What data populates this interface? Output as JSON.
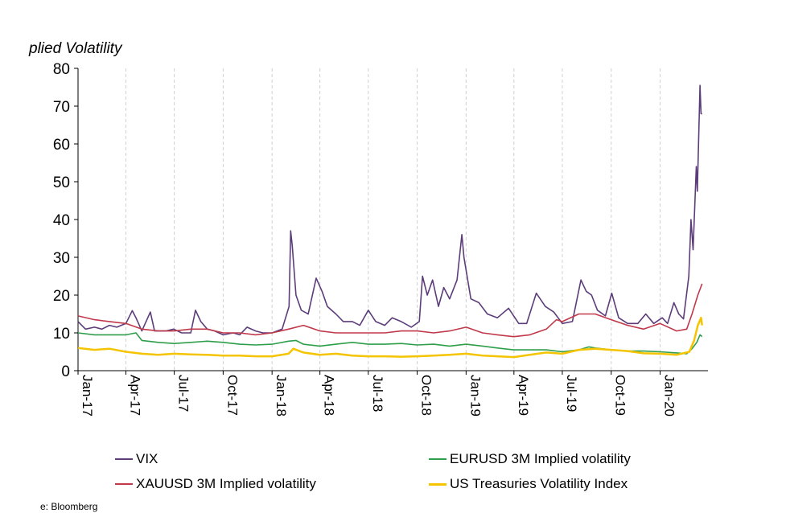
{
  "chart_data": {
    "type": "line",
    "ylabel": "plied Volatility",
    "source": "e: Bloomberg",
    "ylim": [
      0,
      80
    ],
    "yticks": [
      "0",
      "10",
      "20",
      "30",
      "40",
      "50",
      "60",
      "70",
      "80"
    ],
    "xlim": [
      "2017-01-01",
      "2020-03-31"
    ],
    "xticks": [
      {
        "date": "2017-01-01",
        "label": "Jan-17"
      },
      {
        "date": "2017-04-01",
        "label": "Apr-17"
      },
      {
        "date": "2017-07-01",
        "label": "Jul-17"
      },
      {
        "date": "2017-10-01",
        "label": "Oct-17"
      },
      {
        "date": "2018-01-01",
        "label": "Jan-18"
      },
      {
        "date": "2018-04-01",
        "label": "Apr-18"
      },
      {
        "date": "2018-07-01",
        "label": "Jul-18"
      },
      {
        "date": "2018-10-01",
        "label": "Oct-18"
      },
      {
        "date": "2019-01-01",
        "label": "Jan-19"
      },
      {
        "date": "2019-04-01",
        "label": "Apr-19"
      },
      {
        "date": "2019-07-01",
        "label": "Jul-19"
      },
      {
        "date": "2019-10-01",
        "label": "Oct-19"
      },
      {
        "date": "2020-01-01",
        "label": "Jan-20"
      }
    ],
    "grid": "vertical dashed",
    "legend_position": "bottom",
    "series": [
      {
        "name": "VIX",
        "color": "#5c3d7a",
        "points": [
          [
            "2017-01-01",
            13
          ],
          [
            "2017-01-15",
            11
          ],
          [
            "2017-02-01",
            11.5
          ],
          [
            "2017-02-15",
            11
          ],
          [
            "2017-03-01",
            12
          ],
          [
            "2017-03-15",
            11.5
          ],
          [
            "2017-04-01",
            12.5
          ],
          [
            "2017-04-13",
            15.9
          ],
          [
            "2017-04-20",
            14
          ],
          [
            "2017-05-01",
            10.5
          ],
          [
            "2017-05-17",
            15.5
          ],
          [
            "2017-05-25",
            10.5
          ],
          [
            "2017-06-15",
            10.5
          ],
          [
            "2017-06-30",
            11
          ],
          [
            "2017-07-15",
            10
          ],
          [
            "2017-08-01",
            10
          ],
          [
            "2017-08-10",
            16
          ],
          [
            "2017-08-20",
            13
          ],
          [
            "2017-09-01",
            11
          ],
          [
            "2017-09-15",
            10.5
          ],
          [
            "2017-10-01",
            9.5
          ],
          [
            "2017-10-20",
            10
          ],
          [
            "2017-11-01",
            9.5
          ],
          [
            "2017-11-15",
            11.5
          ],
          [
            "2017-12-01",
            10.5
          ],
          [
            "2017-12-15",
            10
          ],
          [
            "2018-01-01",
            10
          ],
          [
            "2018-01-20",
            11
          ],
          [
            "2018-02-02",
            17
          ],
          [
            "2018-02-05",
            37
          ],
          [
            "2018-02-08",
            33
          ],
          [
            "2018-02-15",
            20
          ],
          [
            "2018-02-25",
            16
          ],
          [
            "2018-03-10",
            15
          ],
          [
            "2018-03-25",
            24.5
          ],
          [
            "2018-04-05",
            21
          ],
          [
            "2018-04-15",
            17
          ],
          [
            "2018-05-01",
            15
          ],
          [
            "2018-05-15",
            13
          ],
          [
            "2018-06-01",
            13
          ],
          [
            "2018-06-15",
            12
          ],
          [
            "2018-07-01",
            16
          ],
          [
            "2018-07-15",
            13
          ],
          [
            "2018-08-01",
            12
          ],
          [
            "2018-08-15",
            14
          ],
          [
            "2018-09-01",
            13
          ],
          [
            "2018-09-20",
            11.5
          ],
          [
            "2018-10-05",
            13
          ],
          [
            "2018-10-11",
            25
          ],
          [
            "2018-10-20",
            20
          ],
          [
            "2018-10-30",
            24
          ],
          [
            "2018-11-10",
            17
          ],
          [
            "2018-11-20",
            22
          ],
          [
            "2018-12-01",
            19
          ],
          [
            "2018-12-15",
            24
          ],
          [
            "2018-12-24",
            36
          ],
          [
            "2018-12-28",
            30
          ],
          [
            "2019-01-10",
            19
          ],
          [
            "2019-01-25",
            18
          ],
          [
            "2019-02-10",
            15
          ],
          [
            "2019-03-01",
            14
          ],
          [
            "2019-03-22",
            16.5
          ],
          [
            "2019-04-10",
            12.5
          ],
          [
            "2019-04-25",
            12.5
          ],
          [
            "2019-05-13",
            20.5
          ],
          [
            "2019-05-30",
            17
          ],
          [
            "2019-06-15",
            15.5
          ],
          [
            "2019-07-01",
            12.5
          ],
          [
            "2019-07-20",
            13
          ],
          [
            "2019-08-05",
            24
          ],
          [
            "2019-08-15",
            21
          ],
          [
            "2019-08-25",
            20
          ],
          [
            "2019-09-05",
            16
          ],
          [
            "2019-09-20",
            14.5
          ],
          [
            "2019-10-02",
            20.5
          ],
          [
            "2019-10-15",
            14
          ],
          [
            "2019-11-01",
            12.5
          ],
          [
            "2019-11-20",
            12.5
          ],
          [
            "2019-12-05",
            15
          ],
          [
            "2019-12-20",
            12.5
          ],
          [
            "2020-01-05",
            14
          ],
          [
            "2020-01-15",
            12.5
          ],
          [
            "2020-01-27",
            18
          ],
          [
            "2020-02-05",
            15
          ],
          [
            "2020-02-14",
            13.7
          ],
          [
            "2020-02-24",
            25
          ],
          [
            "2020-02-28",
            40
          ],
          [
            "2020-03-03",
            32
          ],
          [
            "2020-03-09",
            54
          ],
          [
            "2020-03-11",
            47.5
          ],
          [
            "2020-03-16",
            75.5
          ],
          [
            "2020-03-18",
            68
          ],
          [
            "2020-03-20",
            68
          ]
        ]
      },
      {
        "name": "EURUSD 3M Implied volatility",
        "color": "#2e9e4a",
        "points": [
          [
            "2017-01-01",
            10
          ],
          [
            "2017-02-01",
            9.5
          ],
          [
            "2017-03-01",
            9.5
          ],
          [
            "2017-04-01",
            9.5
          ],
          [
            "2017-04-20",
            10
          ],
          [
            "2017-05-01",
            8
          ],
          [
            "2017-06-01",
            7.5
          ],
          [
            "2017-07-01",
            7.2
          ],
          [
            "2017-08-01",
            7.5
          ],
          [
            "2017-09-01",
            7.8
          ],
          [
            "2017-10-01",
            7.5
          ],
          [
            "2017-11-01",
            7
          ],
          [
            "2017-12-01",
            6.8
          ],
          [
            "2018-01-01",
            7
          ],
          [
            "2018-02-01",
            7.8
          ],
          [
            "2018-02-15",
            8
          ],
          [
            "2018-03-01",
            7
          ],
          [
            "2018-04-01",
            6.5
          ],
          [
            "2018-05-01",
            7
          ],
          [
            "2018-06-01",
            7.5
          ],
          [
            "2018-07-01",
            7
          ],
          [
            "2018-08-01",
            7
          ],
          [
            "2018-09-01",
            7.2
          ],
          [
            "2018-10-01",
            6.8
          ],
          [
            "2018-11-01",
            7
          ],
          [
            "2018-12-01",
            6.5
          ],
          [
            "2019-01-01",
            7
          ],
          [
            "2019-02-01",
            6.5
          ],
          [
            "2019-03-01",
            6
          ],
          [
            "2019-04-01",
            5.5
          ],
          [
            "2019-05-01",
            5.5
          ],
          [
            "2019-06-01",
            5.5
          ],
          [
            "2019-07-01",
            5
          ],
          [
            "2019-08-01",
            5.5
          ],
          [
            "2019-08-20",
            6.3
          ],
          [
            "2019-09-01",
            6
          ],
          [
            "2019-10-01",
            5.5
          ],
          [
            "2019-11-01",
            5.2
          ],
          [
            "2019-12-01",
            5.2
          ],
          [
            "2020-01-01",
            5
          ],
          [
            "2020-02-01",
            4.7
          ],
          [
            "2020-02-20",
            4.5
          ],
          [
            "2020-03-01",
            5.8
          ],
          [
            "2020-03-10",
            7.5
          ],
          [
            "2020-03-16",
            9.5
          ],
          [
            "2020-03-20",
            9
          ]
        ]
      },
      {
        "name": "XAUUSD 3M Implied volatility",
        "color": "#c0394b",
        "points": [
          [
            "2017-01-01",
            14.5
          ],
          [
            "2017-02-01",
            13.5
          ],
          [
            "2017-03-01",
            13
          ],
          [
            "2017-04-01",
            12.5
          ],
          [
            "2017-05-01",
            11
          ],
          [
            "2017-06-01",
            10.5
          ],
          [
            "2017-07-01",
            10.5
          ],
          [
            "2017-08-01",
            11
          ],
          [
            "2017-09-01",
            11
          ],
          [
            "2017-10-01",
            10
          ],
          [
            "2017-11-01",
            10
          ],
          [
            "2017-12-01",
            9.5
          ],
          [
            "2018-01-01",
            10
          ],
          [
            "2018-02-01",
            11
          ],
          [
            "2018-03-01",
            12
          ],
          [
            "2018-04-01",
            10.5
          ],
          [
            "2018-05-01",
            10
          ],
          [
            "2018-06-01",
            10
          ],
          [
            "2018-07-01",
            10
          ],
          [
            "2018-08-01",
            10
          ],
          [
            "2018-09-01",
            10.5
          ],
          [
            "2018-10-01",
            10.5
          ],
          [
            "2018-11-01",
            10
          ],
          [
            "2018-12-01",
            10.5
          ],
          [
            "2019-01-01",
            11.5
          ],
          [
            "2019-02-01",
            10
          ],
          [
            "2019-03-01",
            9.5
          ],
          [
            "2019-04-01",
            9
          ],
          [
            "2019-05-01",
            9.5
          ],
          [
            "2019-06-01",
            11
          ],
          [
            "2019-06-20",
            13.5
          ],
          [
            "2019-07-01",
            13
          ],
          [
            "2019-08-01",
            15
          ],
          [
            "2019-09-01",
            15
          ],
          [
            "2019-10-01",
            13.5
          ],
          [
            "2019-11-01",
            12
          ],
          [
            "2019-12-01",
            11
          ],
          [
            "2020-01-01",
            12.5
          ],
          [
            "2020-02-01",
            10.5
          ],
          [
            "2020-02-20",
            11
          ],
          [
            "2020-03-01",
            15
          ],
          [
            "2020-03-12",
            20
          ],
          [
            "2020-03-20",
            23
          ]
        ]
      },
      {
        "name": "US Treasuries Volatility Index",
        "color": "#f5c400",
        "points": [
          [
            "2017-01-01",
            6
          ],
          [
            "2017-02-01",
            5.5
          ],
          [
            "2017-03-01",
            5.8
          ],
          [
            "2017-04-01",
            5
          ],
          [
            "2017-05-01",
            4.5
          ],
          [
            "2017-06-01",
            4.2
          ],
          [
            "2017-07-01",
            4.5
          ],
          [
            "2017-08-01",
            4.3
          ],
          [
            "2017-09-01",
            4.2
          ],
          [
            "2017-10-01",
            4
          ],
          [
            "2017-11-01",
            4
          ],
          [
            "2017-12-01",
            3.8
          ],
          [
            "2018-01-01",
            3.8
          ],
          [
            "2018-02-01",
            4.5
          ],
          [
            "2018-02-10",
            5.8
          ],
          [
            "2018-03-01",
            4.8
          ],
          [
            "2018-04-01",
            4.2
          ],
          [
            "2018-05-01",
            4.5
          ],
          [
            "2018-06-01",
            4
          ],
          [
            "2018-07-01",
            3.8
          ],
          [
            "2018-08-01",
            3.8
          ],
          [
            "2018-09-01",
            3.7
          ],
          [
            "2018-10-01",
            3.8
          ],
          [
            "2018-11-01",
            4
          ],
          [
            "2018-12-01",
            4.2
          ],
          [
            "2019-01-01",
            4.5
          ],
          [
            "2019-02-01",
            4
          ],
          [
            "2019-03-01",
            3.8
          ],
          [
            "2019-04-01",
            3.6
          ],
          [
            "2019-05-01",
            4.2
          ],
          [
            "2019-06-01",
            4.8
          ],
          [
            "2019-07-01",
            4.5
          ],
          [
            "2019-08-01",
            5.5
          ],
          [
            "2019-09-01",
            5.8
          ],
          [
            "2019-10-01",
            5.5
          ],
          [
            "2019-11-01",
            5.2
          ],
          [
            "2019-12-01",
            4.6
          ],
          [
            "2020-01-01",
            4.5
          ],
          [
            "2020-02-01",
            4.2
          ],
          [
            "2020-02-25",
            5
          ],
          [
            "2020-03-05",
            8
          ],
          [
            "2020-03-12",
            12
          ],
          [
            "2020-03-18",
            14
          ],
          [
            "2020-03-20",
            12
          ]
        ]
      }
    ]
  }
}
